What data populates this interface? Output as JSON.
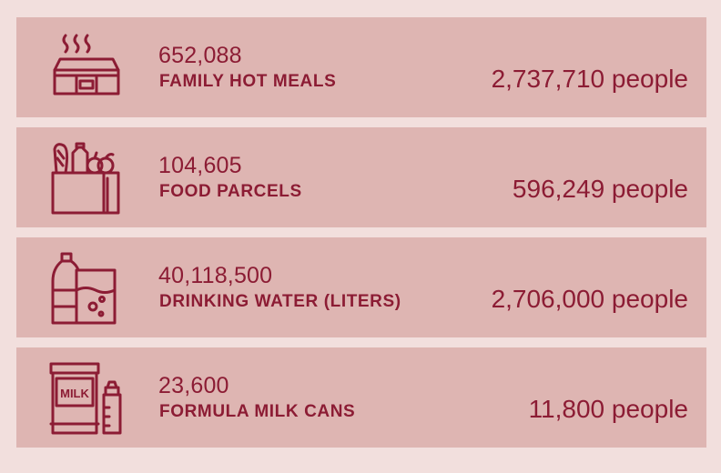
{
  "items": [
    {
      "count": "652,088",
      "label": "FAMILY HOT MEALS",
      "people": "2,737,710 people",
      "icon": "hot-meal-icon"
    },
    {
      "count": "104,605",
      "label": "FOOD PARCELS",
      "people": "596,249 people",
      "icon": "grocery-bag-icon"
    },
    {
      "count": "40,118,500",
      "label": "DRINKING WATER (LITERS)",
      "people": "2,706,000 people",
      "icon": "water-bottle-glass-icon"
    },
    {
      "count": "23,600",
      "label": "FORMULA MILK CANS",
      "people": "11,800 people",
      "icon": "milk-can-bottle-icon",
      "icon_text": "MILK"
    }
  ],
  "colors": {
    "background": "#f2dfdd",
    "card": "#deb5b2",
    "accent": "#8c1c34"
  }
}
